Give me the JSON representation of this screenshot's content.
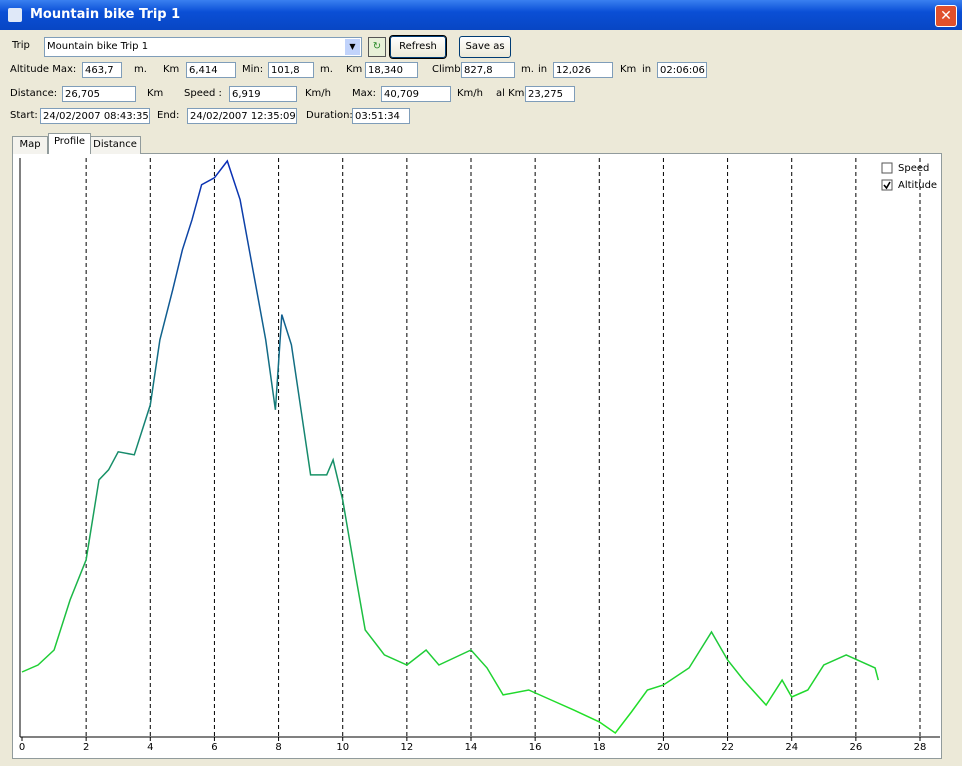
{
  "window": {
    "title": "Mountain bike Trip 1"
  },
  "trip": {
    "label": "Trip",
    "value": "Mountain bike Trip 1"
  },
  "buttons": {
    "refresh": "Refresh",
    "save": "Save as"
  },
  "rows": [
    {
      "items": [
        {
          "label": "Altitude Max:"
        },
        {
          "field": "463,7"
        },
        {
          "label": "m."
        },
        {
          "label": "Km"
        },
        {
          "field": "6,414"
        },
        {
          "label": "Min:"
        },
        {
          "field": "101,8"
        },
        {
          "label": "m."
        },
        {
          "label": "Km"
        },
        {
          "field": "18,340"
        },
        {
          "label": "Climbs"
        },
        {
          "field": "827,8"
        },
        {
          "label": "m."
        },
        {
          "label": "in"
        },
        {
          "field": "12,026"
        },
        {
          "label": "Km"
        },
        {
          "label": "in"
        },
        {
          "field": "02:06:06"
        }
      ]
    },
    {
      "items": [
        {
          "label": "Distance:"
        },
        {
          "field": "26,705"
        },
        {
          "label": "Km"
        },
        {
          "label": "Speed :"
        },
        {
          "field": "6,919"
        },
        {
          "label": "Km/h"
        },
        {
          "label": "Max:"
        },
        {
          "field": "40,709"
        },
        {
          "label": "Km/h"
        },
        {
          "label": "al Km"
        },
        {
          "field": "23,275"
        }
      ]
    },
    {
      "items": [
        {
          "label": "Start:"
        },
        {
          "field": "24/02/2007 08:43:35"
        },
        {
          "label": "End:"
        },
        {
          "field": "24/02/2007 12:35:09"
        },
        {
          "label": "Duration:"
        },
        {
          "field": "03:51:34"
        }
      ]
    }
  ],
  "tabs": [
    "Map",
    "Profile",
    "Distance"
  ],
  "chart_data": {
    "type": "line",
    "x": [
      0,
      0.5,
      1,
      1.5,
      2,
      2.4,
      2.7,
      3,
      3.5,
      4,
      4.3,
      4.7,
      5,
      5.3,
      5.6,
      6,
      6.4,
      6.8,
      7.2,
      7.6,
      7.9,
      8.1,
      8.4,
      8.7,
      9,
      9.5,
      9.7,
      10,
      10.4,
      10.7,
      11.3,
      12,
      12.6,
      13,
      14,
      14.5,
      15,
      15.8,
      16.5,
      17.2,
      18,
      18.5,
      19,
      19.5,
      20,
      20.8,
      21.5,
      22,
      22.5,
      23.2,
      23.7,
      24,
      24.5,
      25,
      25.7,
      26.2,
      26.6,
      26.7
    ],
    "values": [
      140.4,
      144.8,
      154.3,
      186.0,
      211.3,
      262.0,
      268.3,
      279.7,
      277.8,
      309.4,
      350.6,
      382.2,
      407.5,
      426.5,
      448.7,
      453.1,
      463.7,
      439.2,
      394.9,
      350.6,
      306.3,
      366.5,
      347.4,
      306.3,
      265.1,
      265.1,
      274.6,
      249.3,
      201.8,
      167.0,
      151.2,
      144.8,
      154.3,
      144.8,
      154.3,
      143.0,
      125.9,
      129.0,
      122.7,
      116.4,
      108.8,
      101.8,
      115.1,
      129.0,
      132.2,
      143.0,
      165.7,
      148.0,
      135.3,
      119.5,
      135.3,
      124.6,
      129.0,
      144.8,
      151.2,
      146.6,
      143.0,
      135.3
    ],
    "colors": [
      "#22e622",
      "#0a2cb8"
    ],
    "xlim": [
      0,
      28
    ],
    "xticks": [
      0,
      2,
      4,
      6,
      8,
      10,
      12,
      14,
      16,
      18,
      20,
      22,
      24,
      26,
      28
    ],
    "grid": true,
    "legend": [
      {
        "label": "Speed",
        "checked": false
      },
      {
        "label": "Altitude",
        "checked": true
      }
    ]
  }
}
